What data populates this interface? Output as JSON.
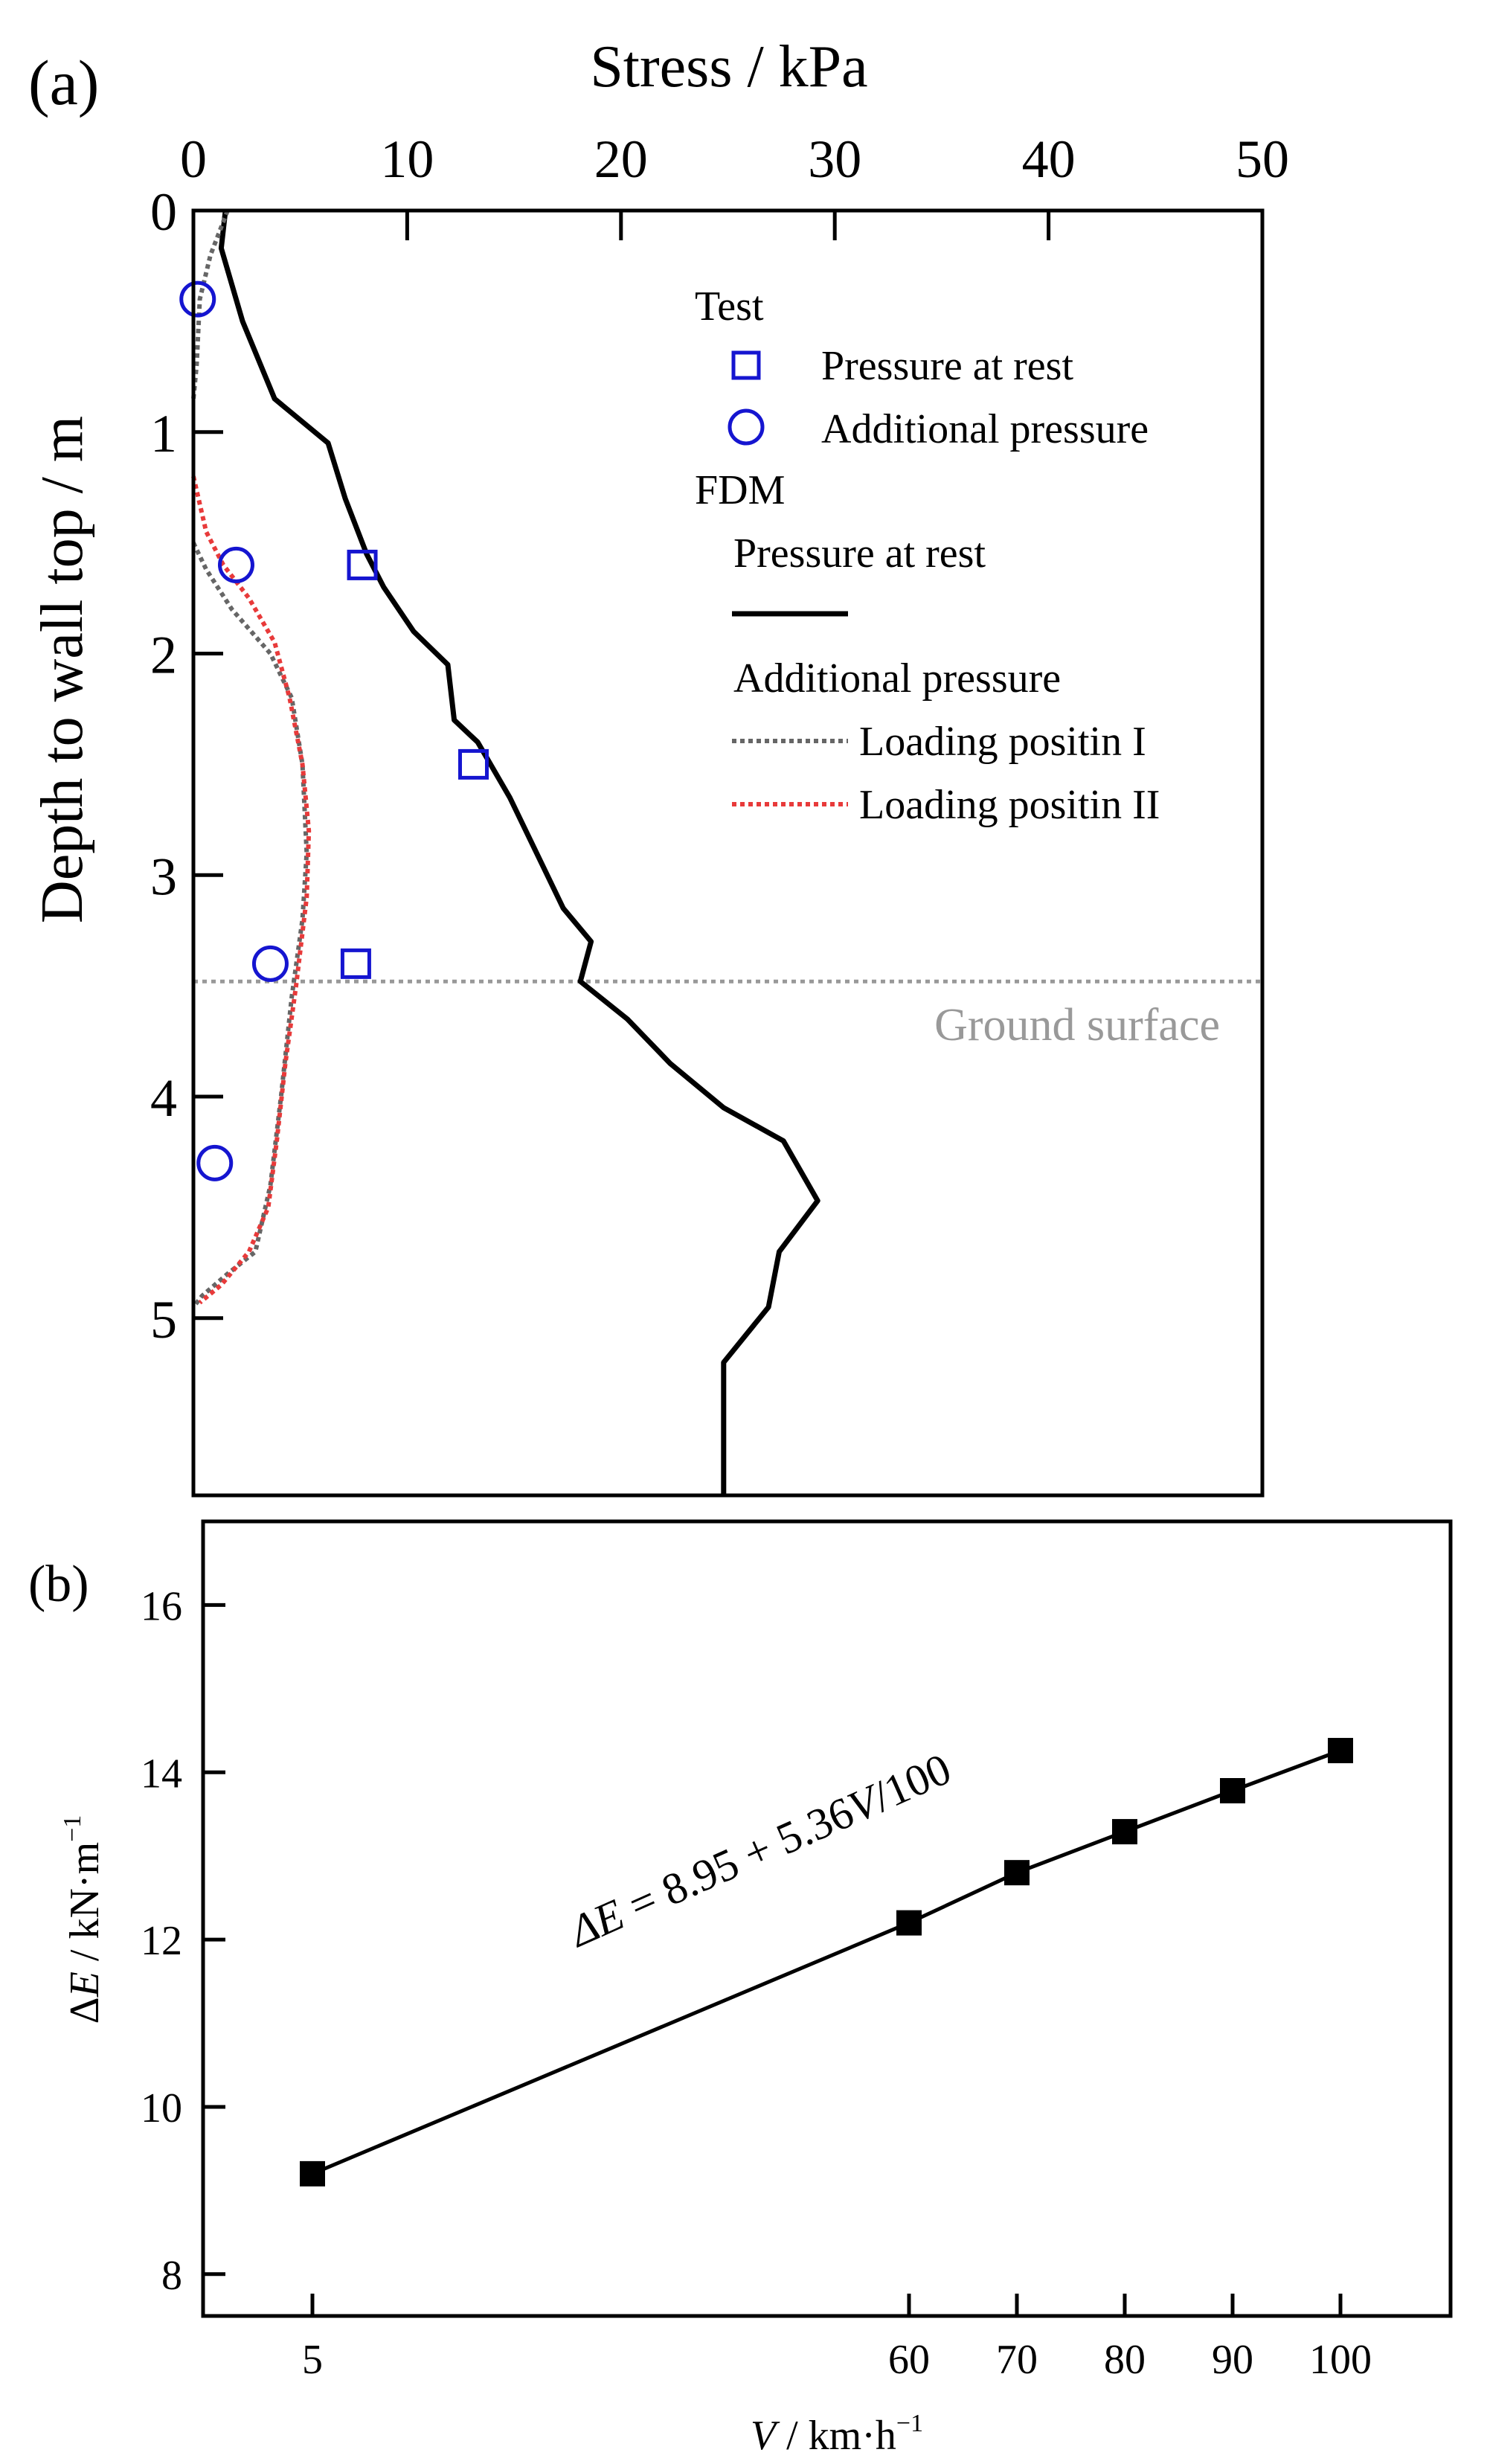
{
  "chart_data": [
    {
      "panel_label": "(a)",
      "type": "line",
      "orientation": "depth-profile",
      "title": "",
      "xlabel": "Stress / kPa",
      "ylabel": "Depth to wall top / m",
      "xlim": [
        0,
        50
      ],
      "ylim": [
        0,
        5.8
      ],
      "x_ticks": [
        "0",
        "10",
        "20",
        "30",
        "40",
        "50"
      ],
      "y_ticks": [
        "0",
        "1",
        "2",
        "3",
        "4",
        "5"
      ],
      "x_tick_values": [
        0,
        10,
        20,
        30,
        40,
        50
      ],
      "y_tick_values": [
        0,
        1,
        2,
        3,
        4,
        5
      ],
      "legend": {
        "test_header": "Test",
        "test_rest": "Pressure at rest",
        "test_add": "Additional pressure",
        "fdm_header": "FDM",
        "fdm_rest": "Pressure at rest",
        "fdm_add": "Additional pressure",
        "loading_1": "Loading positin I",
        "loading_2": "Loading positin II"
      },
      "annotation": {
        "text": "Ground surface",
        "depth": 3.48
      },
      "series": [
        {
          "name": "FDM pressure at rest",
          "style": "solid",
          "color": "#000000",
          "points": [
            [
              1.5,
              0
            ],
            [
              1.3,
              0.17
            ],
            [
              2.3,
              0.5
            ],
            [
              3.8,
              0.85
            ],
            [
              6.3,
              1.05
            ],
            [
              7.1,
              1.3
            ],
            [
              8.1,
              1.55
            ],
            [
              8.9,
              1.7
            ],
            [
              10.3,
              1.9
            ],
            [
              11.9,
              2.05
            ],
            [
              12.2,
              2.3
            ],
            [
              13.3,
              2.4
            ],
            [
              14.8,
              2.65
            ],
            [
              16.3,
              2.95
            ],
            [
              17.3,
              3.15
            ],
            [
              18.6,
              3.3
            ],
            [
              18.1,
              3.48
            ],
            [
              20.3,
              3.65
            ],
            [
              22.3,
              3.85
            ],
            [
              24.8,
              4.05
            ],
            [
              27.6,
              4.2
            ],
            [
              29.2,
              4.47
            ],
            [
              27.4,
              4.7
            ],
            [
              26.9,
              4.95
            ],
            [
              24.8,
              5.2
            ],
            [
              24.8,
              5.8
            ]
          ]
        },
        {
          "name": "FDM additional pressure - Loading positin I",
          "style": "dashed",
          "color": "#666666",
          "points": [
            [
              1.6,
              0
            ],
            [
              0.8,
              0.2
            ],
            [
              0.3,
              0.4
            ],
            [
              0.15,
              0.7
            ],
            [
              0,
              0.85
            ]
          ]
        },
        {
          "name": "FDM additional pressure - Loading positin I (lower)",
          "style": "dashed",
          "color": "#666666",
          "points": [
            [
              0,
              1.5
            ],
            [
              0.6,
              1.62
            ],
            [
              1.8,
              1.8
            ],
            [
              3.6,
              2.0
            ],
            [
              4.6,
              2.2
            ],
            [
              5.1,
              2.5
            ],
            [
              5.3,
              2.9
            ],
            [
              5.1,
              3.2
            ],
            [
              4.6,
              3.55
            ],
            [
              4.1,
              4.0
            ],
            [
              3.6,
              4.4
            ],
            [
              2.9,
              4.7
            ],
            [
              1.6,
              4.8
            ],
            [
              0.4,
              4.9
            ],
            [
              0,
              4.95
            ]
          ]
        },
        {
          "name": "FDM additional pressure - Loading positin II",
          "style": "dashed",
          "color": "#e83a3a",
          "points": [
            [
              0,
              1.2
            ],
            [
              0.6,
              1.45
            ],
            [
              1.4,
              1.6
            ],
            [
              2.6,
              1.75
            ],
            [
              3.8,
              1.95
            ],
            [
              4.5,
              2.2
            ],
            [
              5.1,
              2.5
            ],
            [
              5.4,
              2.8
            ],
            [
              5.3,
              3.1
            ],
            [
              4.8,
              3.5
            ],
            [
              4.3,
              3.85
            ],
            [
              3.9,
              4.2
            ],
            [
              3.5,
              4.5
            ],
            [
              2.6,
              4.7
            ],
            [
              1.3,
              4.85
            ],
            [
              0.3,
              4.93
            ]
          ]
        }
      ],
      "test_points": {
        "pressure_at_rest": [
          [
            7.9,
            1.6
          ],
          [
            13.1,
            2.5
          ],
          [
            7.6,
            3.4
          ]
        ],
        "additional_pressure": [
          [
            0.2,
            0.4
          ],
          [
            2.0,
            1.6
          ],
          [
            3.6,
            3.4
          ],
          [
            1.0,
            4.3
          ]
        ]
      }
    },
    {
      "panel_label": "(b)",
      "type": "line",
      "title": "",
      "xlabel_parts": [
        "V",
        " / km·h",
        "−1"
      ],
      "ylabel_parts": [
        "Δ",
        "E",
        " / kN·m",
        "−1"
      ],
      "equation_parts": [
        "Δ",
        "E",
        " = 8.95 + 5.36",
        "V",
        "/100"
      ],
      "x_ticks": [
        "5",
        "60",
        "70",
        "80",
        "90",
        "100"
      ],
      "y_ticks": [
        "8",
        "10",
        "12",
        "14",
        "16"
      ],
      "y_tick_values": [
        8,
        10,
        12,
        14,
        16
      ],
      "ylim": [
        7.5,
        17
      ],
      "categories": [
        "5",
        "60",
        "70",
        "80",
        "90",
        "100"
      ],
      "x_values": [
        5,
        60,
        70,
        80,
        90,
        100
      ],
      "values": [
        9.2,
        12.2,
        12.8,
        13.29,
        13.78,
        14.26
      ],
      "marker": "filled-square"
    }
  ]
}
